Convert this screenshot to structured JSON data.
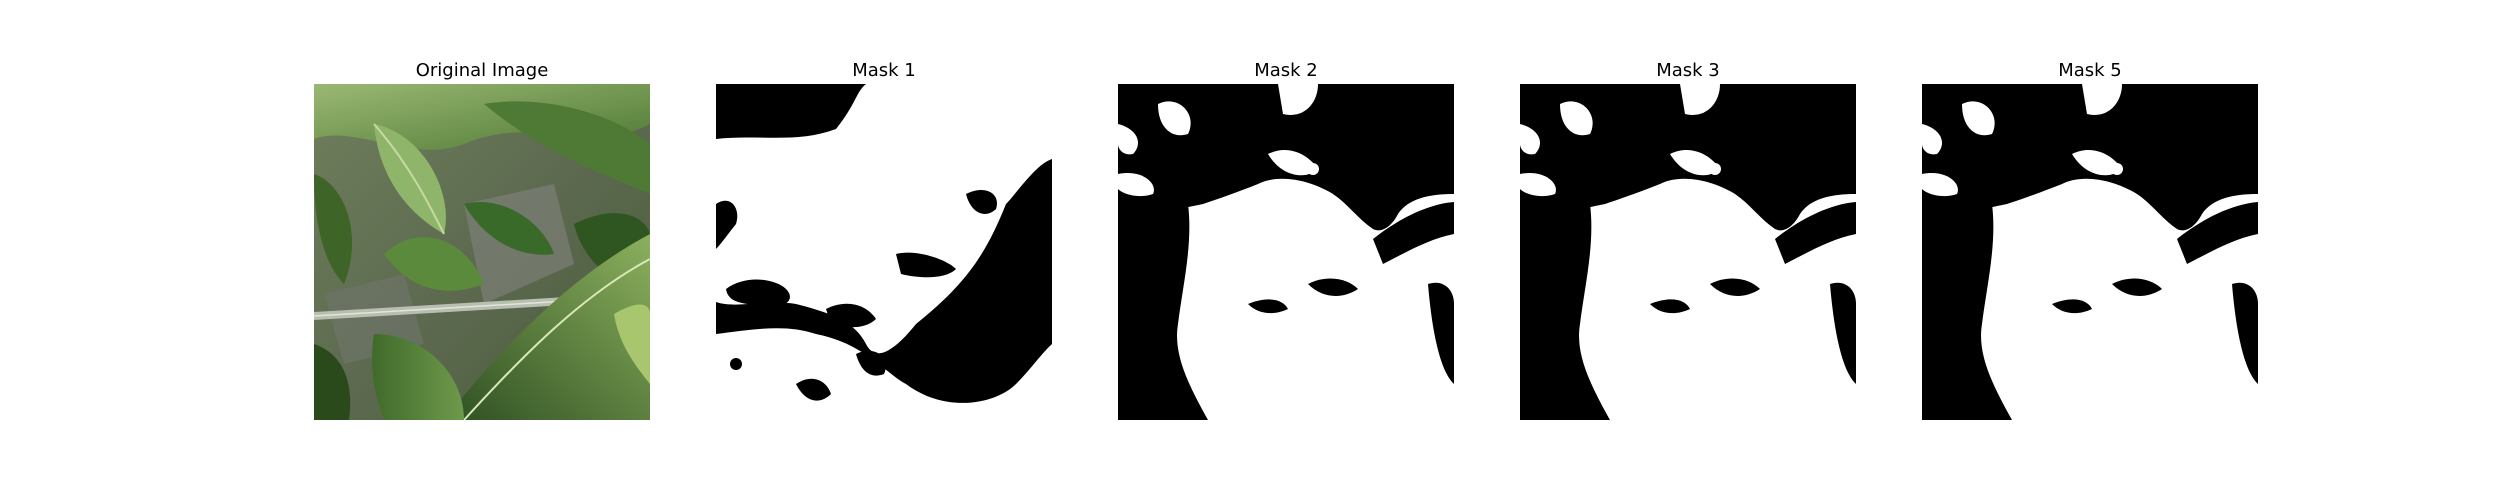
{
  "figure": {
    "panels": [
      {
        "title": "Original Image",
        "kind": "photo",
        "subject": "green pepper plant leaves with a support pole"
      },
      {
        "title": "Mask 1",
        "kind": "mask",
        "colors": [
          "#000000",
          "#ffffff"
        ]
      },
      {
        "title": "Mask 2",
        "kind": "mask",
        "colors": [
          "#000000",
          "#ffffff"
        ]
      },
      {
        "title": "Mask 3",
        "kind": "mask",
        "colors": [
          "#000000",
          "#ffffff"
        ]
      },
      {
        "title": "Mask 5",
        "kind": "mask",
        "colors": [
          "#000000",
          "#ffffff"
        ]
      }
    ]
  }
}
